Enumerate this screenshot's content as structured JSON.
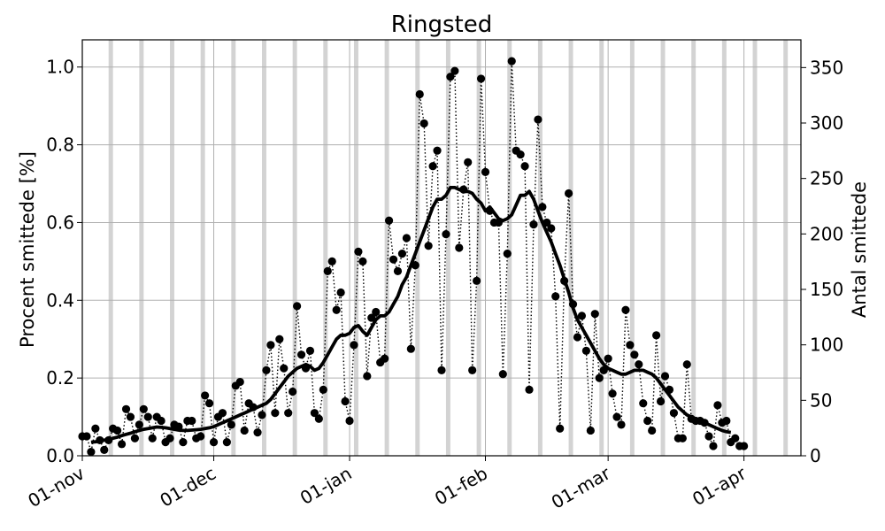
{
  "chart_data": {
    "type": "line",
    "title": "Ringsted",
    "ylabel": "Procent smittede [%]",
    "ylabel_right": "Antal smittede",
    "ylim": [
      0,
      1.07
    ],
    "ylim_right": [
      0,
      375
    ],
    "yticks": [
      "0.0",
      "0.2",
      "0.4",
      "0.6",
      "0.8",
      "1.0"
    ],
    "yticks_right": [
      "0",
      "50",
      "100",
      "150",
      "200",
      "250",
      "300",
      "350"
    ],
    "xticks": [
      "01-nov",
      "01-dec",
      "01-jan",
      "01-feb",
      "01-mar",
      "01-apr"
    ],
    "x_start": "2020-11-01",
    "grid": true,
    "weekend_shading": true,
    "colors": {
      "data": "#000000",
      "shade": "#d3d3d3",
      "grid": "#b0b0b0"
    },
    "series": [
      {
        "style": "dotted-with-markers",
        "values": [
          0.05,
          0.05,
          0.01,
          0.07,
          0.04,
          0.015,
          0.04,
          0.07,
          0.065,
          0.03,
          0.12,
          0.1,
          0.045,
          0.08,
          0.12,
          0.1,
          0.045,
          0.1,
          0.09,
          0.035,
          0.045,
          0.08,
          0.075,
          0.035,
          0.09,
          0.09,
          0.045,
          0.05,
          0.155,
          0.135,
          0.035,
          0.1,
          0.11,
          0.035,
          0.08,
          0.18,
          0.19,
          0.065,
          0.135,
          0.125,
          0.06,
          0.105,
          0.22,
          0.285,
          0.11,
          0.3,
          0.225,
          0.11,
          0.165,
          0.385,
          0.26,
          0.225,
          0.27,
          0.11,
          0.095,
          0.17,
          0.475,
          0.5,
          0.375,
          0.42,
          0.14,
          0.09,
          0.285,
          0.525,
          0.5,
          0.205,
          0.355,
          0.37,
          0.24,
          0.25,
          0.605,
          0.505,
          0.475,
          0.52,
          0.56,
          0.275,
          0.49,
          0.93,
          0.855,
          0.54,
          0.745,
          0.785,
          0.22,
          0.57,
          0.975,
          0.99,
          0.535,
          0.685,
          0.755,
          0.22,
          0.45,
          0.97,
          0.73,
          0.63,
          0.6,
          0.6,
          0.21,
          0.52,
          1.015,
          0.785,
          0.775,
          0.745,
          0.17,
          0.595,
          0.865,
          0.64,
          0.6,
          0.585,
          0.41,
          0.07,
          0.45,
          0.675,
          0.39,
          0.305,
          0.36,
          0.27,
          0.065,
          0.365,
          0.2,
          0.22,
          0.25,
          0.16,
          0.1,
          0.08,
          0.375,
          0.285,
          0.26,
          0.235,
          0.135,
          0.09,
          0.065,
          0.31,
          0.14,
          0.205,
          0.17,
          0.11,
          0.045,
          0.045,
          0.235,
          0.095,
          0.09,
          0.09,
          0.085,
          0.05,
          0.025,
          0.13,
          0.085,
          0.09,
          0.035,
          0.045,
          0.025,
          0.025
        ]
      },
      {
        "style": "solid-thick",
        "name": "",
        "values": [
          0.035,
          0.036,
          0.038,
          0.04,
          0.042,
          0.045,
          0.048,
          0.052,
          0.055,
          0.058,
          0.062,
          0.065,
          0.068,
          0.07,
          0.072,
          0.074,
          0.073,
          0.072,
          0.07,
          0.068,
          0.066,
          0.065,
          0.065,
          0.066,
          0.067,
          0.068,
          0.07,
          0.072,
          0.075,
          0.08,
          0.085,
          0.09,
          0.095,
          0.1,
          0.105,
          0.11,
          0.115,
          0.12,
          0.125,
          0.13,
          0.135,
          0.145,
          0.16,
          0.175,
          0.19,
          0.205,
          0.215,
          0.225,
          0.23,
          0.235,
          0.23,
          0.22,
          0.225,
          0.24,
          0.26,
          0.28,
          0.3,
          0.31,
          0.31,
          0.315,
          0.33,
          0.335,
          0.32,
          0.31,
          0.33,
          0.35,
          0.36,
          0.36,
          0.37,
          0.39,
          0.41,
          0.44,
          0.46,
          0.49,
          0.52,
          0.55,
          0.58,
          0.61,
          0.64,
          0.66,
          0.66,
          0.67,
          0.69,
          0.69,
          0.685,
          0.68,
          0.68,
          0.675,
          0.66,
          0.65,
          0.63,
          0.64,
          0.625,
          0.61,
          0.605,
          0.61,
          0.62,
          0.645,
          0.67,
          0.67,
          0.68,
          0.66,
          0.63,
          0.6,
          0.575,
          0.55,
          0.52,
          0.49,
          0.455,
          0.42,
          0.38,
          0.35,
          0.33,
          0.31,
          0.29,
          0.27,
          0.25,
          0.235,
          0.225,
          0.22,
          0.215,
          0.21,
          0.21,
          0.215,
          0.22,
          0.22,
          0.22,
          0.215,
          0.21,
          0.2,
          0.185,
          0.17,
          0.155,
          0.14,
          0.125,
          0.115,
          0.105,
          0.1,
          0.095,
          0.09,
          0.085,
          0.08,
          0.075,
          0.07,
          0.065,
          0.062,
          0.06
        ]
      }
    ]
  }
}
